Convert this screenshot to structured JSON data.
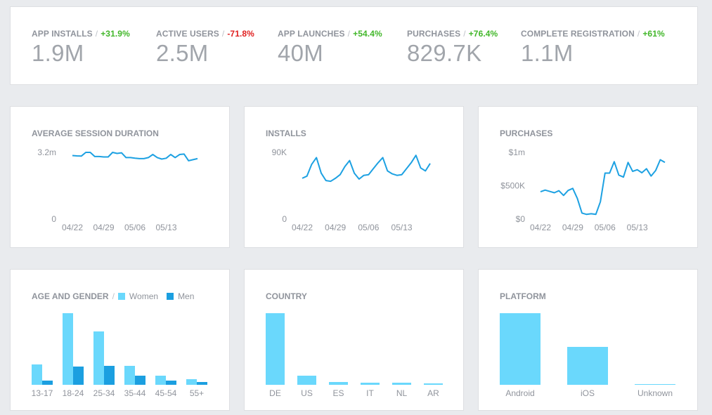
{
  "colors": {
    "line": "#1da1e2",
    "bar_light": "#6ad8fc",
    "bar_dark": "#1b9fe0",
    "positive": "#42b72a",
    "negative": "#e02020"
  },
  "kpis": [
    {
      "label": "APP INSTALLS",
      "delta": "+31.9%",
      "trend": "pos",
      "value": "1.9M"
    },
    {
      "label": "ACTIVE USERS",
      "delta": "-71.8%",
      "trend": "neg",
      "value": "2.5M"
    },
    {
      "label": "APP LAUNCHES",
      "delta": "+54.4%",
      "trend": "pos",
      "value": "40M"
    },
    {
      "label": "PURCHASES",
      "delta": "+76.4%",
      "trend": "pos",
      "value": "829.7K"
    },
    {
      "label": "COMPLETE REGISTRATION",
      "delta": "+61%",
      "trend": "pos",
      "value": "1.1M"
    }
  ],
  "panels": {
    "session": {
      "title": "AVERAGE SESSION DURATION"
    },
    "installs": {
      "title": "INSTALLS"
    },
    "purchases": {
      "title": "PURCHASES"
    },
    "age_gender": {
      "title": "AGE AND GENDER",
      "legend": [
        "Women",
        "Men"
      ]
    },
    "country": {
      "title": "COUNTRY"
    },
    "platform": {
      "title": "PLATFORM"
    }
  },
  "chart_data": [
    {
      "id": "session",
      "type": "line",
      "title": "AVERAGE SESSION DURATION",
      "ytick_labels": [
        "3.2m",
        "0"
      ],
      "ylim": [
        0,
        3.2
      ],
      "x_tick_labels": [
        "04/22",
        "04/29",
        "05/06",
        "05/13"
      ],
      "x_tick_index": [
        0,
        7,
        14,
        21
      ],
      "values": [
        3.05,
        3.03,
        3.02,
        3.2,
        3.2,
        3.0,
        3.0,
        2.98,
        2.98,
        3.2,
        3.15,
        3.18,
        2.95,
        2.95,
        2.92,
        2.9,
        2.9,
        2.95,
        3.1,
        2.95,
        2.88,
        2.92,
        3.1,
        2.95,
        3.1,
        3.12,
        2.8,
        2.85,
        2.9
      ]
    },
    {
      "id": "installs",
      "type": "line",
      "title": "INSTALLS",
      "ytick_labels": [
        "90K",
        "0"
      ],
      "ylim": [
        0,
        90000
      ],
      "x_tick_labels": [
        "04/22",
        "04/29",
        "05/06",
        "05/13"
      ],
      "x_tick_index": [
        0,
        7,
        14,
        21
      ],
      "values": [
        55000,
        58000,
        74000,
        83000,
        62000,
        52000,
        51000,
        55000,
        60000,
        71000,
        79000,
        62000,
        54000,
        59000,
        60000,
        68000,
        76000,
        83000,
        65000,
        61000,
        59000,
        60000,
        68000,
        76000,
        86000,
        69000,
        65000,
        75000
      ]
    },
    {
      "id": "purchases",
      "type": "line",
      "title": "PURCHASES",
      "ytick_labels": [
        "$1m",
        "$500K",
        "$0"
      ],
      "ylim": [
        0,
        1000000
      ],
      "x_tick_labels": [
        "04/22",
        "04/29",
        "05/06",
        "05/13"
      ],
      "x_tick_index": [
        0,
        7,
        14,
        21
      ],
      "values": [
        410000,
        435000,
        415000,
        395000,
        425000,
        355000,
        430000,
        460000,
        310000,
        90000,
        70000,
        80000,
        70000,
        260000,
        690000,
        690000,
        860000,
        660000,
        630000,
        850000,
        715000,
        740000,
        695000,
        755000,
        645000,
        730000,
        890000,
        850000
      ]
    },
    {
      "id": "age_gender",
      "type": "bar",
      "title": "AGE AND GENDER",
      "categories": [
        "13-17",
        "18-24",
        "25-34",
        "35-44",
        "45-54",
        "55+"
      ],
      "series": [
        {
          "name": "Women",
          "values": [
            29,
            102,
            76,
            27,
            13,
            8
          ]
        },
        {
          "name": "Men",
          "values": [
            6,
            26,
            27,
            13,
            6,
            4
          ]
        }
      ],
      "ylim": [
        0,
        102
      ]
    },
    {
      "id": "country",
      "type": "bar",
      "title": "COUNTRY",
      "categories": [
        "DE",
        "US",
        "ES",
        "IT",
        "NL",
        "AR"
      ],
      "values": [
        102,
        13,
        4,
        3,
        3,
        2
      ],
      "ylim": [
        0,
        102
      ]
    },
    {
      "id": "platform",
      "type": "bar",
      "title": "PLATFORM",
      "categories": [
        "Android",
        "iOS",
        "Unknown"
      ],
      "values": [
        102,
        54,
        1
      ],
      "ylim": [
        0,
        102
      ]
    }
  ]
}
